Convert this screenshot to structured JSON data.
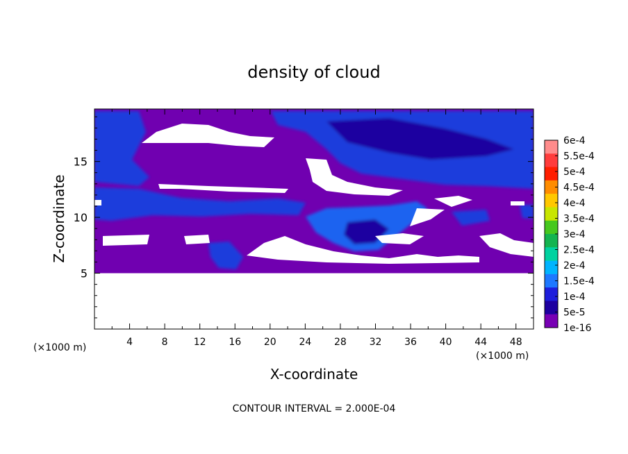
{
  "chart_data": {
    "type": "heatmap",
    "title": "density of cloud",
    "xlabel": "X-coordinate",
    "ylabel": "Z-coordinate",
    "x_unit_left": "(×1000 m)",
    "x_unit_right": "(×1000 m)",
    "footer": "CONTOUR INTERVAL = 2.000E-04",
    "xlim": [
      0,
      50
    ],
    "ylim": [
      0,
      19.7
    ],
    "xticks": [
      "4",
      "8",
      "12",
      "16",
      "20",
      "24",
      "28",
      "32",
      "36",
      "40",
      "44",
      "48"
    ],
    "xtick_values": [
      4,
      8,
      12,
      16,
      20,
      24,
      28,
      32,
      36,
      40,
      44,
      48
    ],
    "yticks": [
      "5",
      "10",
      "15"
    ],
    "ytick_values": [
      5,
      10,
      15
    ],
    "colorbar": {
      "labels": [
        "6e-4",
        "5.5e-4",
        "5e-4",
        "4.5e-4",
        "4e-4",
        "3.5e-4",
        "3e-4",
        "2.5e-4",
        "2e-4",
        "1.5e-4",
        "1e-4",
        "5e-5",
        "1e-16"
      ],
      "colors": [
        "#ff8c8c",
        "#ff3c3c",
        "#ff1e00",
        "#ff8c00",
        "#ffc800",
        "#c8e600",
        "#46c81e",
        "#14b450",
        "#00d2a0",
        "#00b4ff",
        "#1e78ff",
        "#1e1edc",
        "#1e00a0",
        "#7800b4"
      ]
    },
    "field_colors": {
      "background": "#7000b0",
      "level_1": "#1e00a0",
      "level_2": "#1e3cdc",
      "level_3": "#1e64f0",
      "empty": "#ffffff"
    },
    "cloud_base_km": 5,
    "cloud_top_km": 19.7
  }
}
